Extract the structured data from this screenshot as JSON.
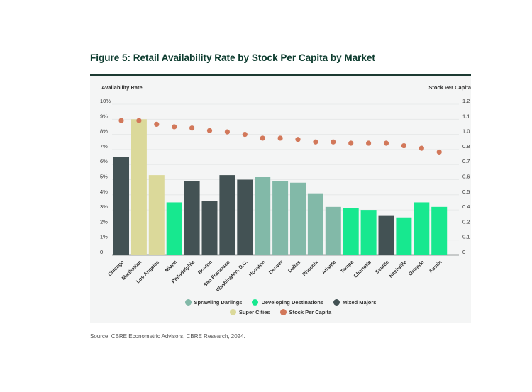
{
  "figure": {
    "title": "Figure 5: Retail Availability Rate by Stock Per Capita by Market",
    "source": "Source: CBRE Econometric Advisors, CBRE Research, 2024."
  },
  "chart_data": {
    "type": "bar",
    "title": "Figure 5: Retail Availability Rate by Stock Per Capita by Market",
    "xlabel": "",
    "ylabel": "Availability Rate",
    "y2label": "Stock Per Capita",
    "ylim": [
      0,
      10
    ],
    "y2lim": [
      0,
      1.2
    ],
    "grid": true,
    "legend_position": "bottom-center",
    "yticks": [
      "0",
      "1%",
      "2%",
      "3%",
      "4%",
      "5%",
      "6%",
      "7%",
      "8%",
      "9%",
      "10%"
    ],
    "y2ticks": [
      "0",
      "0.1",
      "0.2",
      "0.4",
      "0.5",
      "0.6",
      "0.7",
      "0.8",
      "1.0",
      "1.1",
      "1.2"
    ],
    "categories": [
      "Chicago",
      "Manhattan",
      "Los Angeles",
      "Miami",
      "Philadelphia",
      "Boston",
      "San Francisco",
      "Washington, D.C.",
      "Houston",
      "Denver",
      "Dallas",
      "Phoenix",
      "Atlanta",
      "Tampa",
      "Charlotte",
      "Seattle",
      "Nashville",
      "Orlando",
      "Austin"
    ],
    "groups": [
      "Mixed Majors",
      "Super Cities",
      "Super Cities",
      "Developing Destinations",
      "Mixed Majors",
      "Mixed Majors",
      "Mixed Majors",
      "Mixed Majors",
      "Sprawling Darlings",
      "Sprawling Darlings",
      "Sprawling Darlings",
      "Sprawling Darlings",
      "Sprawling Darlings",
      "Developing Destinations",
      "Developing Destinations",
      "Mixed Majors",
      "Developing Destinations",
      "Developing Destinations",
      "Developing Destinations"
    ],
    "series": [
      {
        "name": "Availability Rate",
        "type": "bar",
        "axis": "left",
        "unit": "%",
        "values": [
          6.5,
          9.0,
          5.3,
          3.5,
          4.9,
          3.6,
          5.3,
          5.0,
          5.2,
          4.9,
          4.8,
          4.1,
          3.2,
          3.1,
          3.0,
          2.6,
          2.5,
          3.5,
          3.2
        ]
      },
      {
        "name": "Stock Per Capita",
        "type": "scatter",
        "axis": "right",
        "values": [
          1.07,
          1.07,
          1.04,
          1.02,
          1.01,
          0.99,
          0.98,
          0.96,
          0.93,
          0.93,
          0.92,
          0.9,
          0.9,
          0.89,
          0.89,
          0.89,
          0.87,
          0.85,
          0.82
        ]
      }
    ],
    "legend": [
      {
        "label": "Sprawling Darlings",
        "color": "#82b9a8"
      },
      {
        "label": "Developing Destinations",
        "color": "#17e88f"
      },
      {
        "label": "Mixed Majors",
        "color": "#435254"
      },
      {
        "label": "Super Cities",
        "color": "#dbd99a"
      },
      {
        "label": "Stock Per Capita",
        "color": "#d2785a"
      }
    ],
    "group_colors": {
      "Sprawling Darlings": "#82b9a8",
      "Developing Destinations": "#17e88f",
      "Mixed Majors": "#435254",
      "Super Cities": "#dbd99a"
    },
    "dot_color": "#d2785a"
  }
}
